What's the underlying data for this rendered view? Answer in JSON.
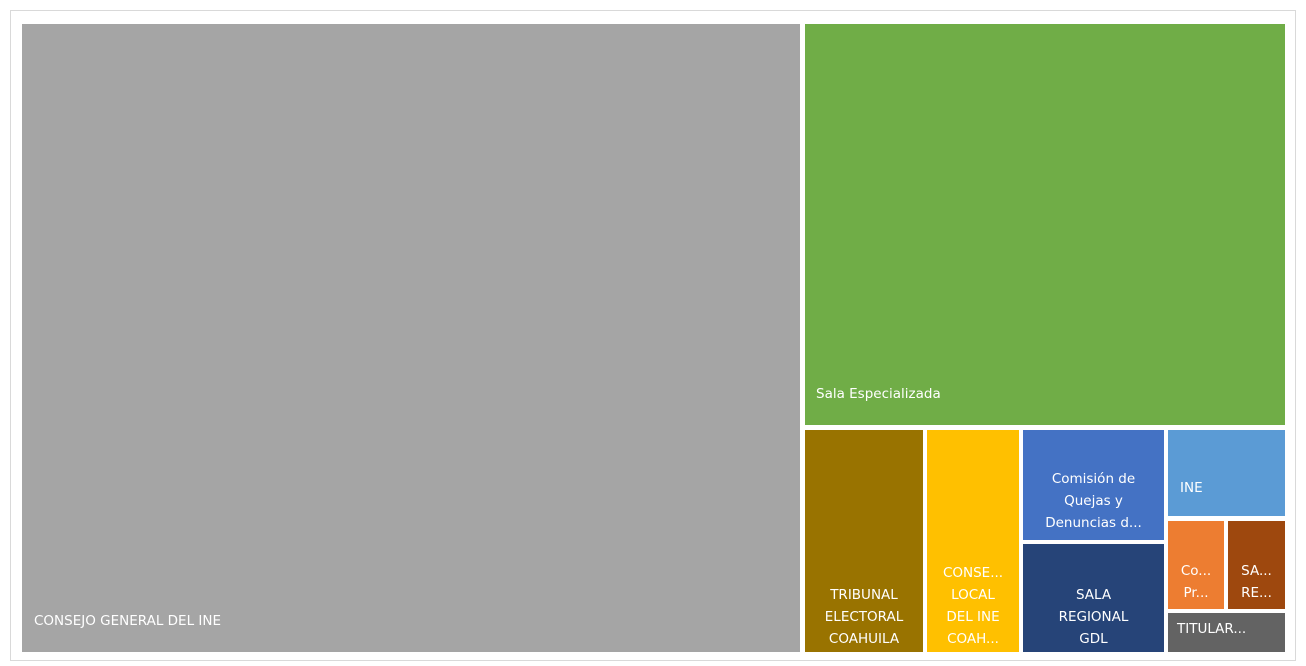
{
  "chart_data": {
    "type": "treemap",
    "title": "",
    "items": [
      {
        "name": "CONSEJO  GENERAL DEL INE",
        "label_lines": [
          "CONSEJO  GENERAL DEL INE"
        ],
        "value": 50.4,
        "color": "#a5a5a5"
      },
      {
        "name": "Sala Especializada",
        "label_lines": [
          "Sala Especializada"
        ],
        "value": 25.7,
        "color": "#70ad47"
      },
      {
        "name": "TRIBUNAL ELECTORAL COAHUILA",
        "label_lines": [
          "TRIBUNAL",
          "ELECTORAL",
          "COAHUILA"
        ],
        "value": 4.5,
        "color": "#997300"
      },
      {
        "name": "CONSEJO LOCAL DEL INE COAHUILA",
        "label_lines": [
          "CONSE...",
          "LOCAL",
          "DEL INE",
          "COAH..."
        ],
        "value": 3.6,
        "color": "#ffc000"
      },
      {
        "name": "Comisión de Quejas y Denuncias",
        "label_lines": [
          "Comisión de",
          "Quejas y",
          "Denuncias d..."
        ],
        "value": 3.6,
        "color": "#4472c4"
      },
      {
        "name": "SALA REGIONAL GDL",
        "label_lines": [
          "SALA",
          "REGIONAL",
          "GDL"
        ],
        "value": 4.4,
        "color": "#264478"
      },
      {
        "name": "INE",
        "label_lines": [
          "INE"
        ],
        "value": 2.8,
        "color": "#5b9bd5"
      },
      {
        "name": "Co... Pr...",
        "label_lines": [
          "Co...",
          "Pr..."
        ],
        "value": 1.4,
        "color": "#ed7d31"
      },
      {
        "name": "SA... RE...",
        "label_lines": [
          "SA...",
          "RE..."
        ],
        "value": 1.4,
        "color": "#9e480e"
      },
      {
        "name": "TITULAR...",
        "label_lines": [
          "TITULAR..."
        ],
        "value": 1.2,
        "color": "#636363"
      }
    ]
  }
}
